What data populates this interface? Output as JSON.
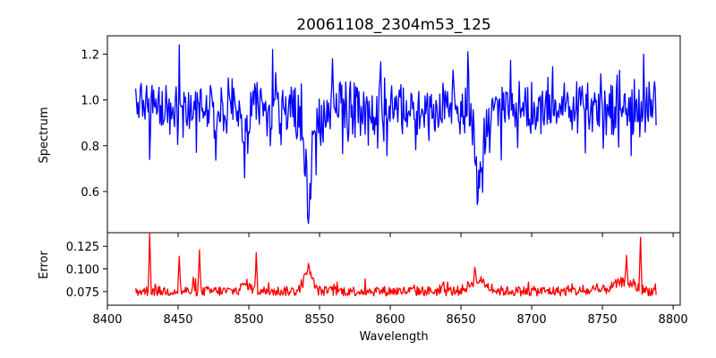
{
  "chart_data": [
    {
      "type": "line",
      "title": "20061108_2304m53_125",
      "xlabel": "",
      "ylabel": "Spectrum",
      "xlim": [
        8400,
        8805
      ],
      "ylim": [
        0.42,
        1.28
      ],
      "xticks": [
        8400,
        8450,
        8500,
        8550,
        8600,
        8650,
        8700,
        8750,
        8800
      ],
      "yticks": [
        0.6,
        0.8,
        1.0,
        1.2
      ],
      "ytick_labels": [
        "0.6",
        "0.8",
        "1.0",
        "1.2"
      ],
      "color": "#0000ff",
      "x_range": [
        8420,
        8788
      ],
      "features": [
        {
          "x": 8430,
          "y": 0.74
        },
        {
          "x": 8451,
          "y": 1.24
        },
        {
          "x": 8497,
          "y": 0.66
        },
        {
          "x": 8517,
          "y": 1.22
        },
        {
          "x": 8542,
          "y": 0.46
        },
        {
          "x": 8559,
          "y": 1.18
        },
        {
          "x": 8662,
          "y": 0.56
        },
        {
          "x": 8655,
          "y": 1.21
        },
        {
          "x": 8779,
          "y": 1.2
        }
      ]
    },
    {
      "type": "line",
      "title": "",
      "xlabel": "Wavelength",
      "ylabel": "Error",
      "xlim": [
        8400,
        8805
      ],
      "ylim": [
        0.06,
        0.14
      ],
      "xticks": [
        8400,
        8450,
        8500,
        8550,
        8600,
        8650,
        8700,
        8750,
        8800
      ],
      "xtick_labels": [
        "8400",
        "8450",
        "8500",
        "8550",
        "8600",
        "8650",
        "8700",
        "8750",
        "8800"
      ],
      "yticks": [
        0.075,
        0.1,
        0.125
      ],
      "ytick_labels": [
        "0.075",
        "0.100",
        "0.125"
      ],
      "color": "#ff0000",
      "x_range": [
        8420,
        8788
      ],
      "features": [
        {
          "x": 8430,
          "y": 0.139
        },
        {
          "x": 8451,
          "y": 0.114
        },
        {
          "x": 8465,
          "y": 0.121
        },
        {
          "x": 8505,
          "y": 0.118
        },
        {
          "x": 8542,
          "y": 0.106
        },
        {
          "x": 8660,
          "y": 0.102
        },
        {
          "x": 8767,
          "y": 0.115
        },
        {
          "x": 8777,
          "y": 0.135
        }
      ]
    }
  ]
}
